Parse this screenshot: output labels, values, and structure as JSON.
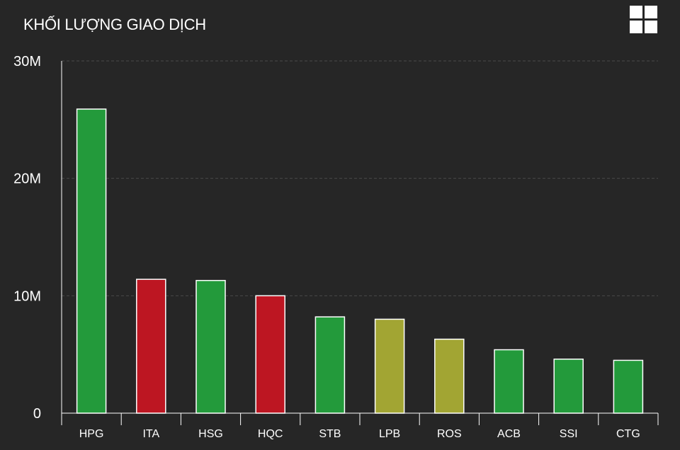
{
  "header": {
    "title": "KHỐI LƯỢNG GIAO DỊCH",
    "menu_icon": "grid-icon"
  },
  "colors": {
    "background": "#262626",
    "up": "#239a3b",
    "down": "#bd1622",
    "reference": "#a2a533",
    "grid": "#4a4a4a"
  },
  "chart_data": {
    "type": "bar",
    "title": "KHỐI LƯỢNG GIAO DỊCH",
    "xlabel": "",
    "ylabel": "",
    "ylim": [
      0,
      30000000
    ],
    "grid": true,
    "y_ticks": [
      {
        "value": 0,
        "label": "0"
      },
      {
        "value": 10000000,
        "label": "10M"
      },
      {
        "value": 20000000,
        "label": "20M"
      },
      {
        "value": 30000000,
        "label": "30M"
      }
    ],
    "categories": [
      "HPG",
      "ITA",
      "HSG",
      "HQC",
      "STB",
      "LPB",
      "ROS",
      "ACB",
      "SSI",
      "CTG"
    ],
    "values": [
      25900000,
      11400000,
      11300000,
      10000000,
      8200000,
      8000000,
      6300000,
      5400000,
      4600000,
      4500000
    ],
    "bar_colors": [
      "#239a3b",
      "#bd1622",
      "#239a3b",
      "#bd1622",
      "#239a3b",
      "#a2a533",
      "#a2a533",
      "#239a3b",
      "#239a3b",
      "#239a3b"
    ]
  }
}
